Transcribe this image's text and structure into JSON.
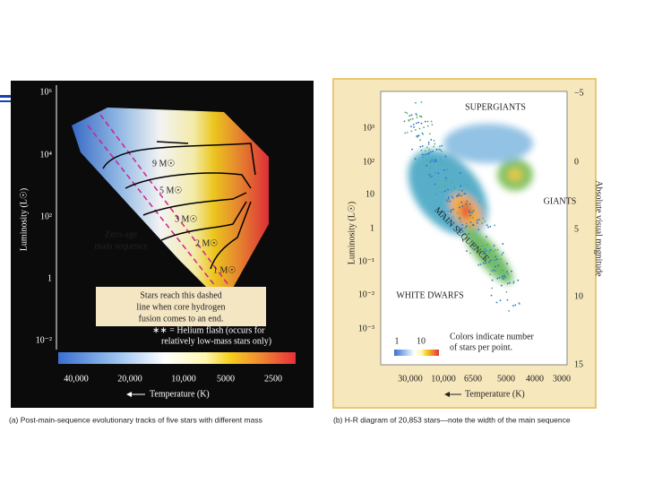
{
  "left_figure": {
    "y_label": "Luminosity (L☉)",
    "y_ticks": [
      "10⁶",
      "10⁴",
      "10²",
      "1",
      "10⁻²"
    ],
    "x_ticks": [
      "40,000",
      "20,000",
      "10,000",
      "5000",
      "2500"
    ],
    "x_label": "Temperature (K)",
    "track_labels": [
      "9 M☉",
      "5 M☉",
      "3 M☉",
      "2 M☉",
      "1 M☉"
    ],
    "zams_label": [
      "Zero-age",
      "main sequence"
    ],
    "note": [
      "Stars reach this dashed",
      "line when core hydrogen",
      "fusion comes to an end."
    ],
    "helium_flash": [
      "∗∗ = Helium flash (occurs for",
      "relatively low-mass stars only)"
    ],
    "caption": "(a) Post-main-sequence evolutionary tracks of five stars with different mass"
  },
  "right_figure": {
    "y_label": "Luminosity (L☉)",
    "y_ticks": [
      "10³",
      "10²",
      "10",
      "1",
      "10⁻¹",
      "10⁻²",
      "10⁻³"
    ],
    "y2_label": "Absolute visual magnitude",
    "y2_ticks": [
      "−5",
      "0",
      "5",
      "10",
      "15"
    ],
    "x_ticks": [
      "30,000",
      "10,000",
      "6500",
      "5000",
      "4000",
      "3000"
    ],
    "x_label": "Temperature (K)",
    "regions": [
      "SUPERGIANTS",
      "GIANTS",
      "MAIN SEQUENCE",
      "WHITE DWARFS"
    ],
    "colorbar_ticks": [
      "1",
      "10"
    ],
    "note": [
      "Colors indicate number",
      "of stars per point."
    ],
    "caption": "(b) H-R diagram of 20,853 stars—note the width of the main sequence"
  }
}
